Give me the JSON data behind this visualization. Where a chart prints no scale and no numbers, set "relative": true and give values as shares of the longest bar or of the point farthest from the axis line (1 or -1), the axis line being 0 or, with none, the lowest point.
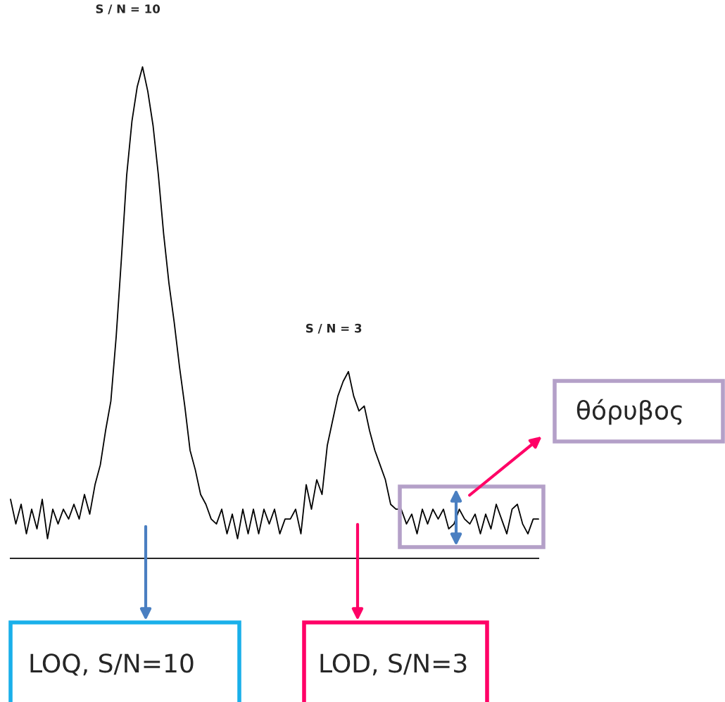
{
  "chart_data": {
    "type": "line",
    "relative": true,
    "color": "#000000",
    "categories": [
      null,
      null,
      null,
      null,
      null,
      null,
      null,
      null,
      null,
      null,
      null,
      null,
      null,
      null,
      null,
      null,
      null,
      null,
      null,
      null,
      null,
      null,
      null,
      null,
      null,
      null,
      null,
      null,
      null,
      null,
      null,
      null,
      null,
      null,
      null,
      null,
      null,
      null,
      null,
      null,
      null,
      null,
      null,
      null,
      null,
      null,
      null,
      null,
      null,
      null,
      null,
      null,
      null,
      null,
      null,
      null,
      null,
      null,
      null,
      null,
      null,
      null,
      null,
      null,
      null,
      null,
      null,
      null,
      null,
      null,
      null,
      null,
      null,
      null,
      null,
      null,
      null,
      null,
      null,
      null,
      null,
      null,
      null,
      null,
      null,
      null,
      null,
      null,
      null,
      null,
      null,
      null,
      null,
      null,
      null,
      null,
      null,
      null,
      null,
      null,
      null
    ],
    "values": [
      0.12,
      0.07,
      0.11,
      0.05,
      0.1,
      0.06,
      0.12,
      0.04,
      0.1,
      0.07,
      0.1,
      0.08,
      0.11,
      0.08,
      0.13,
      0.09,
      0.15,
      0.19,
      0.26,
      0.32,
      0.45,
      0.61,
      0.78,
      0.89,
      0.96,
      1.0,
      0.95,
      0.88,
      0.78,
      0.66,
      0.56,
      0.48,
      0.39,
      0.31,
      0.22,
      0.18,
      0.13,
      0.11,
      0.08,
      0.07,
      0.1,
      0.05,
      0.09,
      0.04,
      0.1,
      0.05,
      0.1,
      0.05,
      0.1,
      0.07,
      0.1,
      0.05,
      0.08,
      0.08,
      0.1,
      0.05,
      0.15,
      0.1,
      0.16,
      0.13,
      0.23,
      0.28,
      0.33,
      0.36,
      0.38,
      0.33,
      0.3,
      0.31,
      0.26,
      0.22,
      0.19,
      0.16,
      0.11,
      0.1,
      0.1,
      0.07,
      0.09,
      0.05,
      0.1,
      0.07,
      0.1,
      0.08,
      0.1,
      0.06,
      0.07,
      0.1,
      0.08,
      0.07,
      0.09,
      0.05,
      0.09,
      0.06,
      0.11,
      0.08,
      0.05,
      0.1,
      0.11,
      0.07,
      0.05,
      0.08,
      0.08
    ],
    "annotations": [
      "S / N = 10",
      "S / N = 3",
      "θόρυβος",
      "LOQ, S/N=10",
      "LOD, S/N=3"
    ]
  }
}
